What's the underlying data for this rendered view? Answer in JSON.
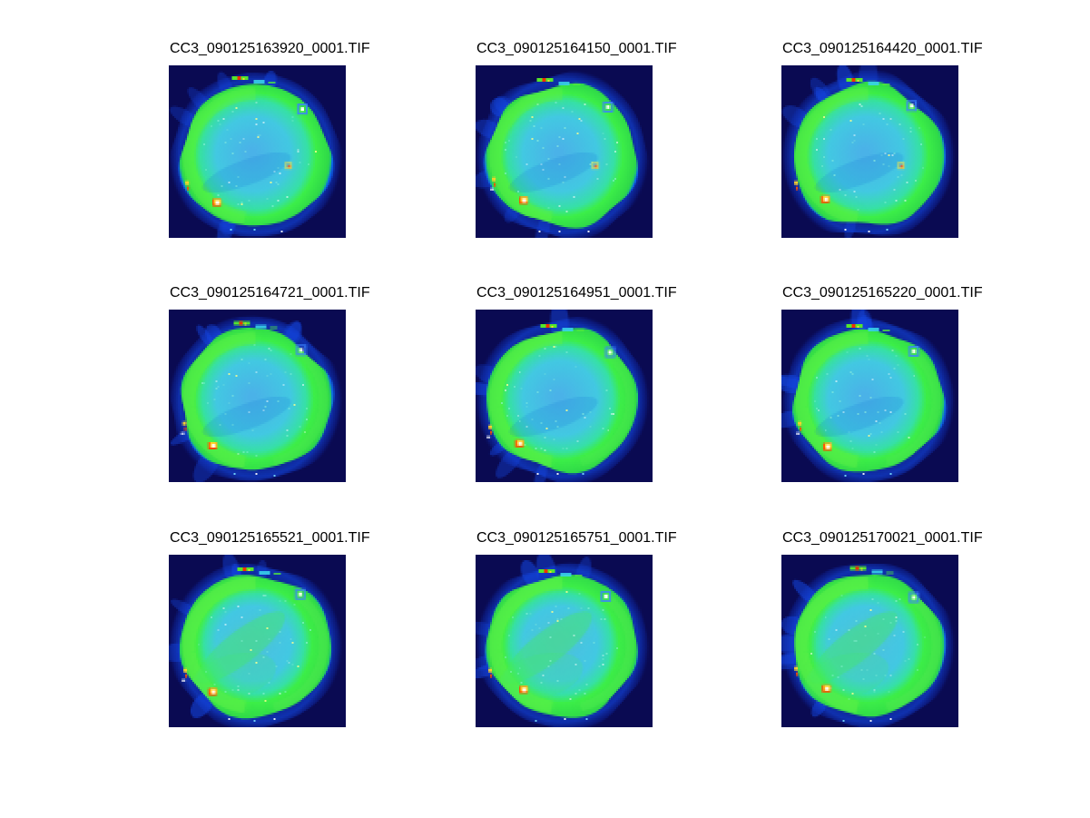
{
  "figure": {
    "background": "#ffffff",
    "layout": "3x3 image montage"
  },
  "panels": [
    {
      "title": "CC3_090125163920_0001.TIF"
    },
    {
      "title": "CC3_090125164150_0001.TIF"
    },
    {
      "title": "CC3_090125164420_0001.TIF"
    },
    {
      "title": "CC3_090125164721_0001.TIF"
    },
    {
      "title": "CC3_090125164951_0001.TIF"
    },
    {
      "title": "CC3_090125165220_0001.TIF"
    },
    {
      "title": "CC3_090125165521_0001.TIF"
    },
    {
      "title": "CC3_090125165751_0001.TIF"
    },
    {
      "title": "CC3_090125170021_0001.TIF"
    }
  ],
  "appearance": {
    "colormap": "jet",
    "background_navy": "#0a0a52",
    "halo_blue": "#1246e0",
    "rim_green": "#3cee48",
    "interior_cyan": "#47b8e6",
    "speck_red": "#ff3000",
    "speck_yellow": "#ffd829",
    "speck_white": "#ffffff",
    "green_levels": [
      0.25,
      0.3,
      0.3,
      0.5,
      0.5,
      0.55,
      0.78,
      0.72,
      0.82
    ]
  },
  "chart_data": {
    "type": "heatmap",
    "layout": "3x3",
    "colormap": "jet",
    "description": "Nine false-color microscopy/beam TIF images of the same circular sample over time; cyan interior with green rim, blue halo on dark navy background, bright red/yellow/white specks on rim",
    "subplots": [
      "CC3_090125163920_0001.TIF",
      "CC3_090125164150_0001.TIF",
      "CC3_090125164420_0001.TIF",
      "CC3_090125164721_0001.TIF",
      "CC3_090125164951_0001.TIF",
      "CC3_090125165220_0001.TIF",
      "CC3_090125165521_0001.TIF",
      "CC3_090125165751_0001.TIF",
      "CC3_090125170021_0001.TIF"
    ]
  }
}
